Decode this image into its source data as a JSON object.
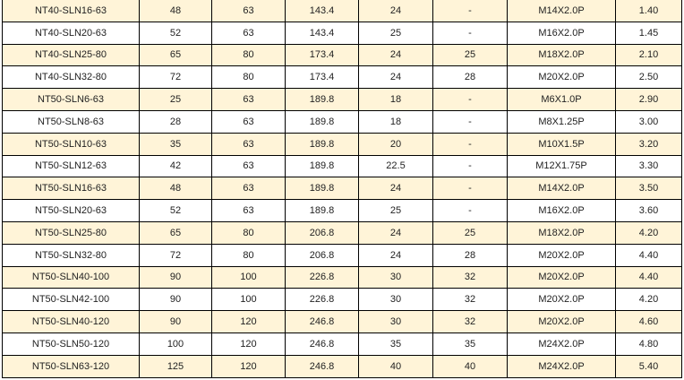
{
  "colors": {
    "striped_row": "#fff4d8",
    "plain_row": "#ffffff",
    "border": "#000000"
  },
  "rows": [
    [
      "NT40-SLN16-63",
      "48",
      "63",
      "143.4",
      "24",
      "-",
      "M14X2.0P",
      "1.40"
    ],
    [
      "NT40-SLN20-63",
      "52",
      "63",
      "143.4",
      "25",
      "-",
      "M16X2.0P",
      "1.45"
    ],
    [
      "NT40-SLN25-80",
      "65",
      "80",
      "173.4",
      "24",
      "25",
      "M18X2.0P",
      "2.10"
    ],
    [
      "NT40-SLN32-80",
      "72",
      "80",
      "173.4",
      "24",
      "28",
      "M20X2.0P",
      "2.50"
    ],
    [
      "NT50-SLN6-63",
      "25",
      "63",
      "189.8",
      "18",
      "-",
      "M6X1.0P",
      "2.90"
    ],
    [
      "NT50-SLN8-63",
      "28",
      "63",
      "189.8",
      "18",
      "-",
      "M8X1.25P",
      "3.00"
    ],
    [
      "NT50-SLN10-63",
      "35",
      "63",
      "189.8",
      "20",
      "-",
      "M10X1.5P",
      "3.20"
    ],
    [
      "NT50-SLN12-63",
      "42",
      "63",
      "189.8",
      "22.5",
      "-",
      "M12X1.75P",
      "3.30"
    ],
    [
      "NT50-SLN16-63",
      "48",
      "63",
      "189.8",
      "24",
      "-",
      "M14X2.0P",
      "3.50"
    ],
    [
      "NT50-SLN20-63",
      "52",
      "63",
      "189.8",
      "25",
      "-",
      "M16X2.0P",
      "3.60"
    ],
    [
      "NT50-SLN25-80",
      "65",
      "80",
      "206.8",
      "24",
      "25",
      "M18X2.0P",
      "4.20"
    ],
    [
      "NT50-SLN32-80",
      "72",
      "80",
      "206.8",
      "24",
      "28",
      "M20X2.0P",
      "4.40"
    ],
    [
      "NT50-SLN40-100",
      "90",
      "100",
      "226.8",
      "30",
      "32",
      "M20X2.0P",
      "4.40"
    ],
    [
      "NT50-SLN42-100",
      "90",
      "100",
      "226.8",
      "30",
      "32",
      "M20X2.0P",
      "4.20"
    ],
    [
      "NT50-SLN40-120",
      "90",
      "120",
      "246.8",
      "30",
      "32",
      "M20X2.0P",
      "4.60"
    ],
    [
      "NT50-SLN50-120",
      "100",
      "120",
      "246.8",
      "35",
      "35",
      "M24X2.0P",
      "4.80"
    ],
    [
      "NT50-SLN63-120",
      "125",
      "120",
      "246.8",
      "40",
      "40",
      "M24X2.0P",
      "5.40"
    ]
  ]
}
